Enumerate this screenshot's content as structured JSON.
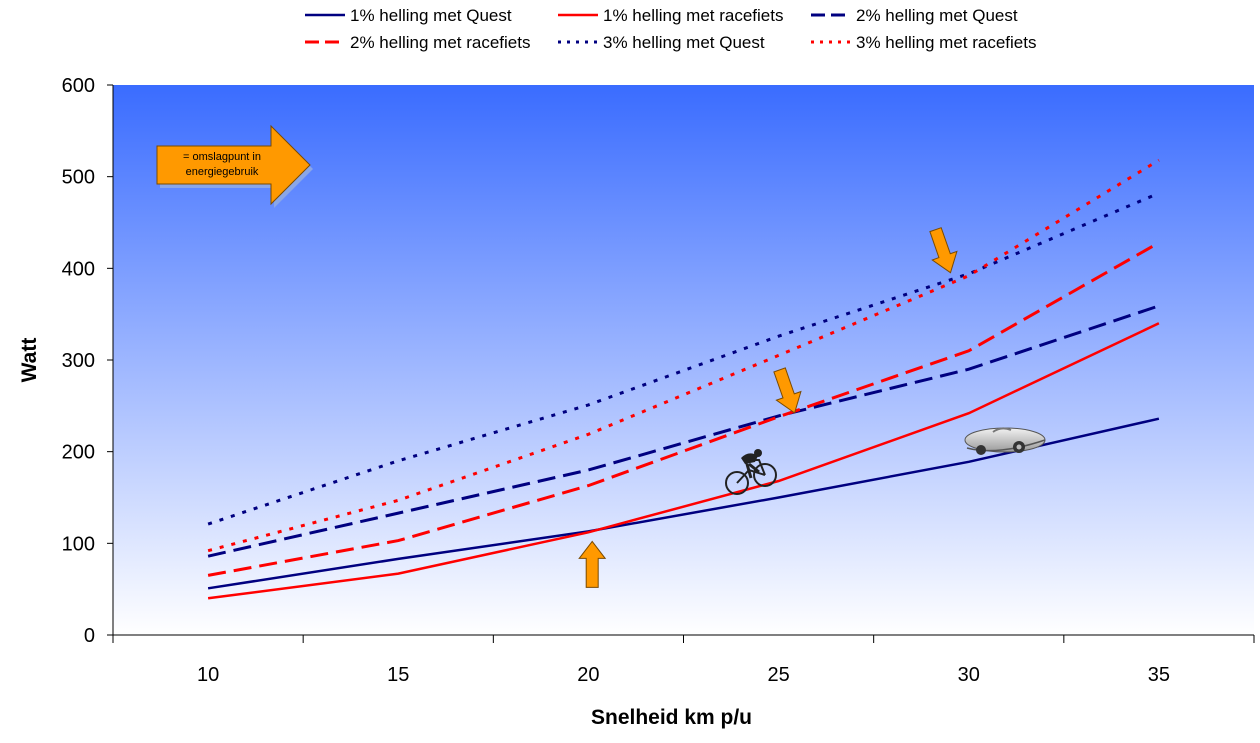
{
  "chart_data": {
    "type": "line",
    "xlabel": "Snelheid km p/u",
    "ylabel": "Watt",
    "x": [
      10,
      15,
      20,
      25,
      30,
      35
    ],
    "xlim": [
      7.5,
      37.5
    ],
    "ylim": [
      0,
      600
    ],
    "yticks": [
      0,
      100,
      200,
      300,
      400,
      500,
      600
    ],
    "xticks": [
      10,
      15,
      20,
      25,
      30,
      35
    ],
    "grid": false,
    "legend_position": "top",
    "series": [
      {
        "name": "1% helling met Quest",
        "values": [
          51,
          83,
          113,
          150,
          189,
          236
        ],
        "color": "#000080",
        "style": "solid"
      },
      {
        "name": "1% helling met racefiets",
        "values": [
          40,
          67,
          112,
          168,
          242,
          340
        ],
        "color": "#ff0000",
        "style": "solid"
      },
      {
        "name": "2% helling met Quest",
        "values": [
          86,
          133,
          180,
          239,
          290,
          359
        ],
        "color": "#000080",
        "style": "dashed"
      },
      {
        "name": "2% helling met racefiets",
        "values": [
          65,
          103,
          163,
          238,
          310,
          428
        ],
        "color": "#ff0000",
        "style": "dashed"
      },
      {
        "name": "3% helling met Quest",
        "values": [
          121,
          190,
          251,
          326,
          394,
          482
        ],
        "color": "#000080",
        "style": "dotted"
      },
      {
        "name": "3% helling met racefiets",
        "values": [
          92,
          147,
          219,
          305,
          392,
          518
        ],
        "color": "#ff0000",
        "style": "dotted"
      }
    ],
    "annotations": [
      {
        "text": "= omslagpunt in",
        "text2": "energiegebruik"
      }
    ],
    "crossover_points": [
      {
        "x": 20.1,
        "y": 113,
        "direction": "up"
      },
      {
        "x": 25.5,
        "y": 239,
        "direction": "down"
      },
      {
        "x": 29.6,
        "y": 392,
        "direction": "down"
      }
    ],
    "colors": {
      "plot_top": "#3a6cff",
      "plot_bottom": "#ffffff",
      "arrow_fill": "#ff9900",
      "quest": "#000080",
      "racefiets": "#ff0000"
    },
    "icons": {
      "cyclist": "cyclist-icon",
      "velomobile": "velomobile-icon"
    }
  }
}
